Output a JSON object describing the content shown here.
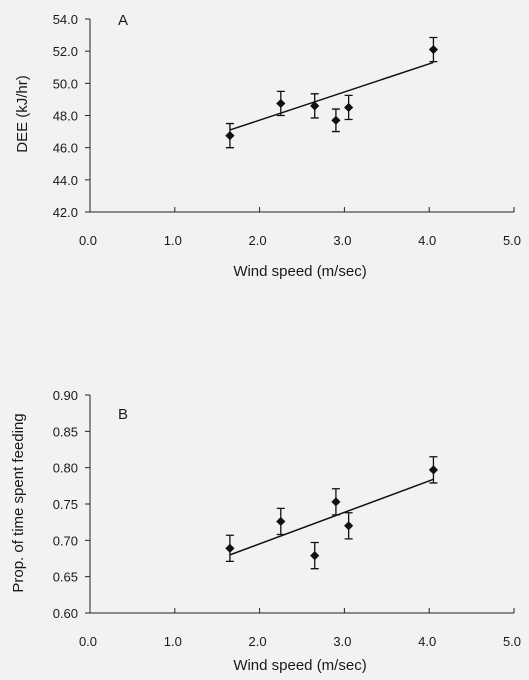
{
  "chart_data": [
    {
      "type": "scatter",
      "panel_label": "A",
      "xlabel": "Wind speed (m/sec)",
      "ylabel": "DEE (kJ/hr)",
      "xlim": [
        0,
        5
      ],
      "ylim": [
        42,
        54
      ],
      "xticks": [
        "0.0",
        "1.0",
        "2.0",
        "3.0",
        "4.0",
        "5.0"
      ],
      "yticks": [
        "42.0",
        "44.0",
        "46.0",
        "48.0",
        "50.0",
        "52.0",
        "54.0"
      ],
      "points": [
        {
          "x": 1.65,
          "y": 46.75,
          "err": 0.75
        },
        {
          "x": 2.25,
          "y": 48.75,
          "err": 0.75
        },
        {
          "x": 2.65,
          "y": 48.6,
          "err": 0.75
        },
        {
          "x": 2.9,
          "y": 47.7,
          "err": 0.7
        },
        {
          "x": 3.05,
          "y": 48.5,
          "err": 0.75
        },
        {
          "x": 4.05,
          "y": 52.1,
          "err": 0.75
        }
      ],
      "fit": [
        [
          1.65,
          47.1
        ],
        [
          4.05,
          51.3
        ]
      ],
      "grid": false
    },
    {
      "type": "scatter",
      "panel_label": "B",
      "xlabel": "Wind speed (m/sec)",
      "ylabel": "Prop. of time spent feeding",
      "xlim": [
        0,
        5
      ],
      "ylim": [
        0.6,
        0.9
      ],
      "xticks": [
        "0.0",
        "1.0",
        "2.0",
        "3.0",
        "4.0",
        "5.0"
      ],
      "yticks": [
        "0.60",
        "0.65",
        "0.70",
        "0.75",
        "0.80",
        "0.85",
        "0.90"
      ],
      "points": [
        {
          "x": 1.65,
          "y": 0.689,
          "err": 0.018
        },
        {
          "x": 2.25,
          "y": 0.726,
          "err": 0.018
        },
        {
          "x": 2.65,
          "y": 0.679,
          "err": 0.018
        },
        {
          "x": 2.9,
          "y": 0.753,
          "err": 0.018
        },
        {
          "x": 3.05,
          "y": 0.72,
          "err": 0.018
        },
        {
          "x": 4.05,
          "y": 0.797,
          "err": 0.018
        }
      ],
      "fit": [
        [
          1.65,
          0.68
        ],
        [
          4.05,
          0.784
        ]
      ],
      "grid": false
    }
  ]
}
